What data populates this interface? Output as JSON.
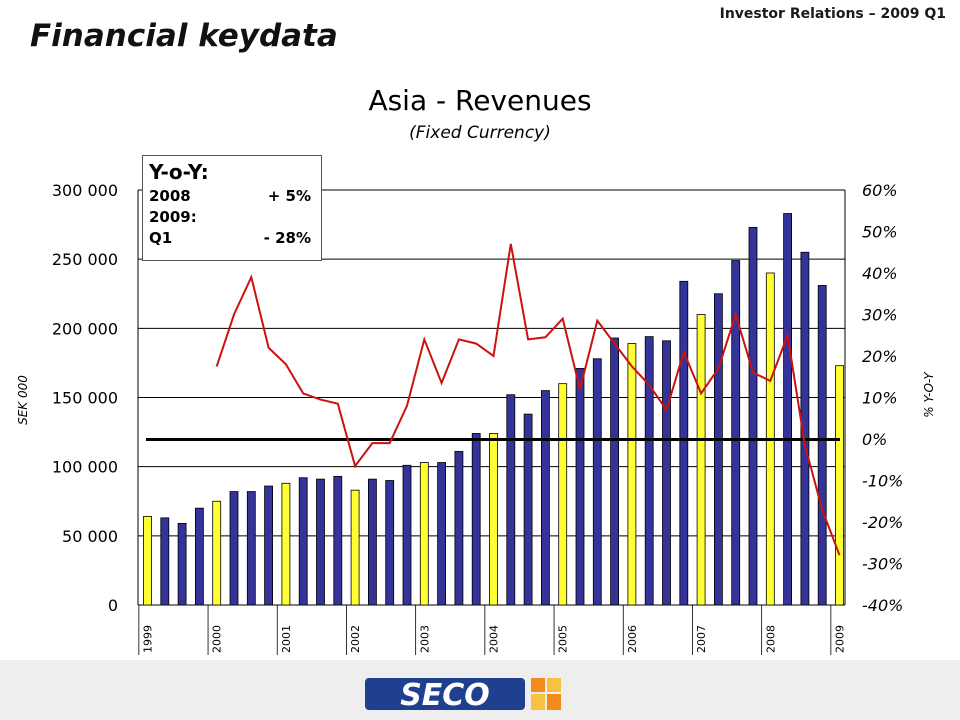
{
  "header": {
    "right_label": "Investor Relations – 2009 Q1",
    "slide_title": "Financial keydata"
  },
  "yoy_box": {
    "title": "Y-o-Y:",
    "rows": [
      {
        "left": "2008",
        "right": "+  5%"
      },
      {
        "left": "2009:",
        "right": ""
      },
      {
        "left": "Q1",
        "right": "- 28%"
      }
    ]
  },
  "footer": {
    "logo_text": "SECO"
  },
  "colors": {
    "bar_q4": "#ffff33",
    "bar_other": "#333399",
    "line": "#cc1111",
    "zero_line": "#000000"
  },
  "chart_data": {
    "type": "bar",
    "title": "Asia - Revenues",
    "subtitle": "(Fixed Currency)",
    "ylabel": "SEK 000",
    "ylabel_right": "% Y-O-Y",
    "ylim": [
      0,
      300000
    ],
    "ylim_right": [
      -40,
      60
    ],
    "yticks": [
      "0",
      "50 000",
      "100 000",
      "150 000",
      "200 000",
      "250 000",
      "300 000"
    ],
    "yticks_right": [
      "-40%",
      "-30%",
      "-20%",
      "-10%",
      "0%",
      "10%",
      "20%",
      "30%",
      "40%",
      "50%",
      "60%"
    ],
    "year_labels": [
      "1999",
      "2000",
      "2001",
      "2002",
      "2003",
      "2004",
      "2005",
      "2006",
      "2007",
      "2008",
      "2009"
    ],
    "series": [
      {
        "type": "bar",
        "values": [
          64000,
          63000,
          59000,
          70000,
          75000,
          82000,
          82000,
          86000,
          88000,
          92000,
          91000,
          93000,
          83000,
          91000,
          90000,
          101000,
          103000,
          103000,
          111000,
          124000,
          124000,
          152000,
          138000,
          155000,
          160000,
          171000,
          178000,
          193000,
          189000,
          194000,
          191000,
          234000,
          210000,
          225000,
          249000,
          273000,
          240000,
          283000,
          255000,
          231000,
          173000
        ],
        "highlight": [
          true,
          false,
          false,
          false,
          true,
          false,
          false,
          false,
          true,
          false,
          false,
          false,
          true,
          false,
          false,
          false,
          true,
          false,
          false,
          false,
          true,
          false,
          false,
          false,
          true,
          false,
          false,
          false,
          true,
          false,
          false,
          false,
          true,
          false,
          false,
          false,
          true,
          false,
          false,
          false,
          true
        ]
      },
      {
        "type": "line",
        "axis": "right",
        "start_index": 4,
        "values": [
          17.5,
          30,
          39,
          22,
          18,
          11,
          9.5,
          8.5,
          -6.5,
          -1,
          -1,
          8,
          24,
          13.5,
          24,
          23,
          20,
          47,
          24,
          24.5,
          29,
          12,
          28.5,
          23,
          17.5,
          13,
          7,
          21,
          11,
          17,
          30,
          16,
          14,
          25,
          -1.5,
          -17,
          -28
        ]
      }
    ]
  }
}
